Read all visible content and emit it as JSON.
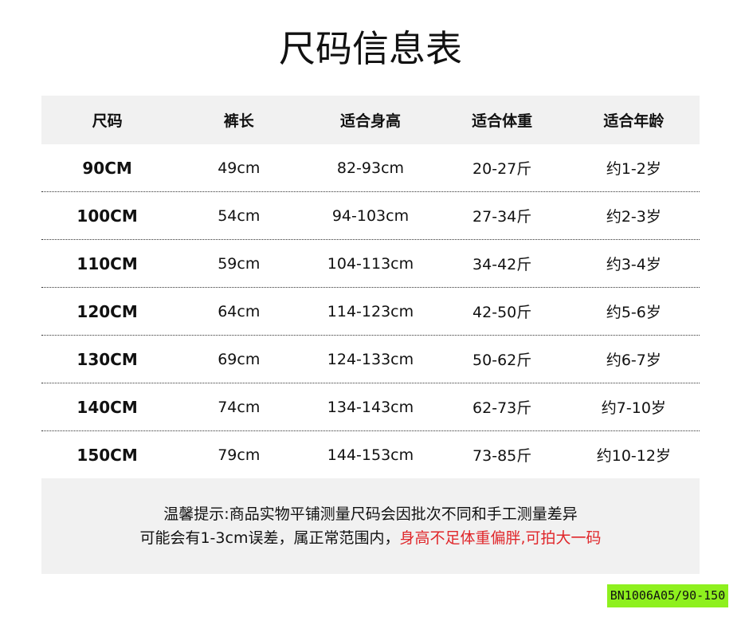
{
  "title": "尺码信息表",
  "table": {
    "headers": [
      "尺码",
      "裤长",
      "适合身高",
      "适合体重",
      "适合年龄"
    ],
    "rows": [
      [
        "90CM",
        "49cm",
        "82-93cm",
        "20-27斤",
        "约1-2岁"
      ],
      [
        "100CM",
        "54cm",
        "94-103cm",
        "27-34斤",
        "约2-3岁"
      ],
      [
        "110CM",
        "59cm",
        "104-113cm",
        "34-42斤",
        "约3-4岁"
      ],
      [
        "120CM",
        "64cm",
        "114-123cm",
        "42-50斤",
        "约5-6岁"
      ],
      [
        "130CM",
        "69cm",
        "124-133cm",
        "50-62斤",
        "约6-7岁"
      ],
      [
        "140CM",
        "74cm",
        "134-143cm",
        "62-73斤",
        "约7-10岁"
      ],
      [
        "150CM",
        "79cm",
        "144-153cm",
        "73-85斤",
        "约10-12岁"
      ]
    ]
  },
  "note": {
    "line1": "温馨提示:商品实物平铺测量尺码会因批次不同和手工测量差异",
    "line2_black": "可能会有1-3cm误差，属正常范围内，",
    "line2_red": "身高不足体重偏胖,可拍大一码",
    "highlight_color": "#e0262a"
  },
  "badge": {
    "label": "BN1006A05/90-150",
    "color": "#8ef01e"
  }
}
